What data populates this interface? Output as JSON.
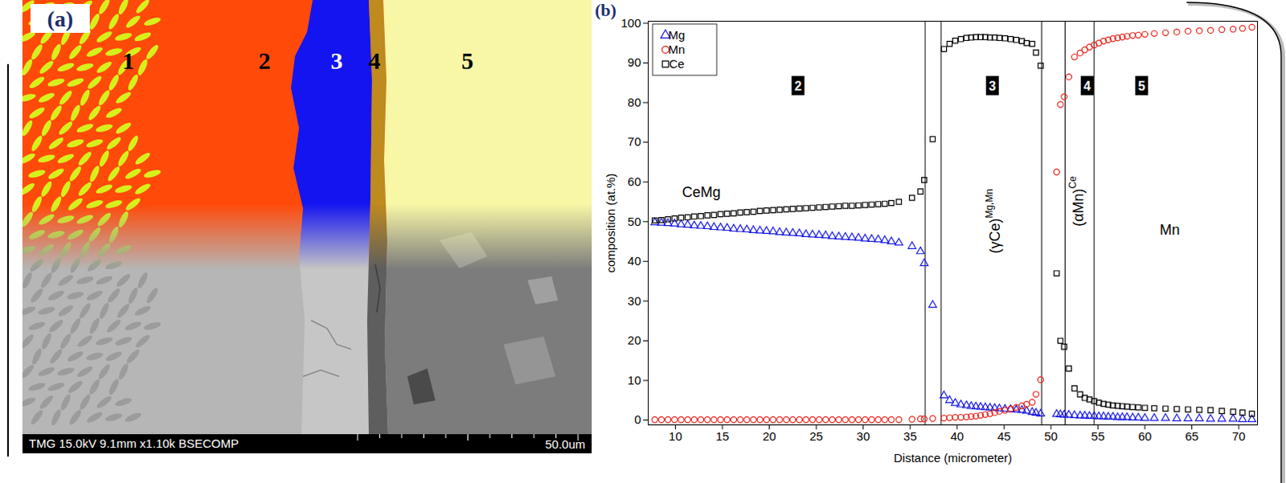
{
  "image_panel": {
    "panel_label": "(a)",
    "region_labels": [
      "1",
      "2",
      "3",
      "4",
      "5"
    ],
    "info_text": "TMG 15.0kV 9.1mm x1.10k BSECOMP",
    "scale_bar_label": "50.0um"
  },
  "chart_data": {
    "type": "scatter",
    "panel_label": "(b)",
    "x_label": "Distance (micrometer)",
    "y_label": "composition (at.%)",
    "xlim": [
      7.1,
      72.0
    ],
    "xticks": [
      10,
      15,
      20,
      25,
      30,
      35,
      40,
      45,
      50,
      55,
      60,
      65,
      70
    ],
    "ylim": [
      -1.2,
      100.5
    ],
    "yticks": [
      0,
      10,
      20,
      30,
      40,
      50,
      60,
      70,
      80,
      90,
      100
    ],
    "grid": false,
    "legend": "top-left",
    "x": [
      7.8,
      8.5,
      9.2,
      9.9,
      10.6,
      11.3,
      12.0,
      12.7,
      13.4,
      14.1,
      14.8,
      15.5,
      16.2,
      16.9,
      17.6,
      18.3,
      19.0,
      19.7,
      20.4,
      21.1,
      21.8,
      22.5,
      23.2,
      23.9,
      24.6,
      25.3,
      26.0,
      26.7,
      27.4,
      28.1,
      28.8,
      29.5,
      30.2,
      30.9,
      31.6,
      32.3,
      33.0,
      33.8,
      35.2,
      36.1,
      36.5,
      37.4,
      38.6,
      39.2,
      39.8,
      40.4,
      41.0,
      41.5,
      42.0,
      42.5,
      43.0,
      43.5,
      44.0,
      44.5,
      45.1,
      45.7,
      46.3,
      46.9,
      47.4,
      48.0,
      48.4,
      48.9,
      50.6,
      51.0,
      51.4,
      51.9,
      52.5,
      53.1,
      53.6,
      54.1,
      54.6,
      55.1,
      55.6,
      56.1,
      56.6,
      57.1,
      57.6,
      58.1,
      58.7,
      59.3,
      60.0,
      61.0,
      62.2,
      63.4,
      64.6,
      65.8,
      67.0,
      68.2,
      69.4,
      70.4,
      71.4
    ],
    "series": [
      {
        "name": "Mg",
        "color": "#1a1ae6",
        "marker": "triangle",
        "values": [
          49.8,
          49.7,
          49.6,
          49.5,
          49.3,
          49.2,
          49.0,
          48.9,
          48.8,
          48.6,
          48.5,
          48.4,
          48.2,
          48.1,
          48.0,
          47.8,
          47.7,
          47.6,
          47.5,
          47.3,
          47.2,
          47.1,
          47.0,
          46.8,
          46.7,
          46.6,
          46.5,
          46.3,
          46.2,
          46.1,
          46.0,
          45.9,
          45.7,
          45.6,
          45.5,
          45.3,
          45.0,
          44.7,
          43.8,
          42.5,
          39.5,
          29.0,
          6.2,
          5.0,
          4.3,
          3.9,
          3.7,
          3.5,
          3.4,
          3.3,
          3.2,
          3.1,
          3.0,
          2.9,
          2.8,
          2.7,
          2.6,
          2.5,
          2.3,
          2.0,
          1.8,
          1.6,
          1.5,
          1.4,
          1.3,
          1.3,
          1.2,
          1.1,
          1.1,
          1.0,
          1.0,
          0.9,
          0.9,
          0.8,
          0.8,
          0.7,
          0.7,
          0.7,
          0.6,
          0.6,
          0.5,
          0.5,
          0.5,
          0.4,
          0.4,
          0.4,
          0.3,
          0.3,
          0.3,
          0.2,
          0.2
        ]
      },
      {
        "name": "Mn",
        "color": "#e8241c",
        "marker": "circle",
        "values": [
          0.1,
          0.1,
          0.1,
          0.1,
          0.1,
          0.1,
          0.1,
          0.1,
          0.1,
          0.1,
          0.1,
          0.1,
          0.1,
          0.1,
          0.1,
          0.1,
          0.1,
          0.1,
          0.1,
          0.1,
          0.1,
          0.1,
          0.1,
          0.1,
          0.1,
          0.1,
          0.1,
          0.1,
          0.1,
          0.1,
          0.1,
          0.1,
          0.1,
          0.1,
          0.1,
          0.1,
          0.1,
          0.1,
          0.2,
          0.3,
          0.3,
          0.4,
          0.5,
          0.6,
          0.7,
          0.7,
          0.8,
          0.9,
          1.0,
          1.2,
          1.4,
          1.6,
          1.9,
          2.2,
          2.5,
          2.8,
          3.2,
          3.6,
          4.0,
          4.5,
          6.5,
          10.2,
          62.5,
          79.5,
          81.5,
          86.5,
          91.5,
          92.5,
          93.3,
          94.0,
          94.5,
          95.0,
          95.5,
          95.8,
          96.1,
          96.3,
          96.5,
          96.7,
          96.9,
          97.0,
          97.2,
          97.4,
          97.6,
          97.8,
          98.0,
          98.1,
          98.2,
          98.4,
          98.5,
          98.7,
          99.0
        ]
      },
      {
        "name": "Ce",
        "color": "#000000",
        "marker": "square",
        "values": [
          50.3,
          50.4,
          50.6,
          50.8,
          51.0,
          51.1,
          51.3,
          51.4,
          51.6,
          51.7,
          51.9,
          52.0,
          52.1,
          52.3,
          52.4,
          52.5,
          52.7,
          52.8,
          52.9,
          53.0,
          53.1,
          53.2,
          53.3,
          53.4,
          53.5,
          53.6,
          53.7,
          53.8,
          53.9,
          54.0,
          54.0,
          54.1,
          54.2,
          54.3,
          54.4,
          54.5,
          54.7,
          55.0,
          56.0,
          57.6,
          60.5,
          70.8,
          93.5,
          94.8,
          95.6,
          96.0,
          96.3,
          96.4,
          96.5,
          96.5,
          96.5,
          96.4,
          96.4,
          96.3,
          96.2,
          96.0,
          95.8,
          95.5,
          95.0,
          94.8,
          92.6,
          89.3,
          37.0,
          20.0,
          18.5,
          13.0,
          8.0,
          6.5,
          5.6,
          5.2,
          4.8,
          4.4,
          4.1,
          3.9,
          3.7,
          3.6,
          3.5,
          3.4,
          3.3,
          3.2,
          3.1,
          3.0,
          2.9,
          2.8,
          2.7,
          2.6,
          2.5,
          2.3,
          2.1,
          1.9,
          1.6
        ]
      }
    ],
    "region_boundaries": [
      36.6,
      38.3,
      49.0,
      51.5,
      54.6
    ],
    "region_markers": [
      {
        "text": "2",
        "x": 23.1,
        "y": 84.2
      },
      {
        "text": "3",
        "x": 43.8,
        "y": 84.2
      },
      {
        "text": "4",
        "x": 53.9,
        "y": 84.2
      },
      {
        "text": "5",
        "x": 59.7,
        "y": 84.2
      }
    ],
    "annotations": [
      {
        "text": "CeMg",
        "x": 12.8,
        "y": 57.0
      },
      {
        "text": "Mn",
        "x": 62.7,
        "y": 47.5
      }
    ],
    "vertical_annotations": [
      {
        "text": "(γCe)",
        "superscript": "Mg,Mn",
        "x": 44.2,
        "y": 50.0
      },
      {
        "text": "(αMn)",
        "superscript": "Ce",
        "x": 53.0,
        "y": 55.0
      }
    ]
  }
}
